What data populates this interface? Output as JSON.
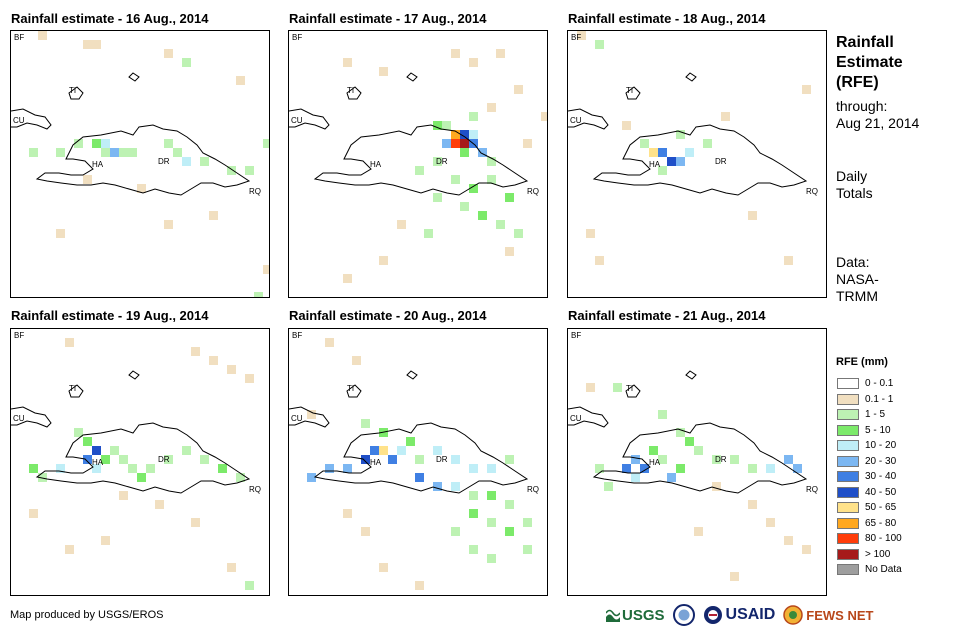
{
  "maps": [
    {
      "title": "Rainfall estimate - 16 Aug., 2014",
      "day": "16"
    },
    {
      "title": "Rainfall estimate - 17 Aug., 2014",
      "day": "17"
    },
    {
      "title": "Rainfall estimate - 18 Aug., 2014",
      "day": "18"
    },
    {
      "title": "Rainfall estimate - 19 Aug., 2014",
      "day": "19"
    },
    {
      "title": "Rainfall estimate - 20 Aug., 2014",
      "day": "20"
    },
    {
      "title": "Rainfall estimate - 21 Aug., 2014",
      "day": "21"
    }
  ],
  "map_labels": {
    "bf": "BF",
    "cu": "CU",
    "ti": "TI",
    "ha": "HA",
    "dr": "DR",
    "rq": "RQ"
  },
  "side": {
    "title_line1": "Rainfall",
    "title_line2": "Estimate",
    "title_line3": "(RFE)",
    "through_label": "through:",
    "through_date": "Aug 21, 2014",
    "totals_line1": "Daily",
    "totals_line2": "Totals",
    "data_line1": "Data:",
    "data_line2": "NASA-",
    "data_line3": "TRMM"
  },
  "legend": {
    "title": "RFE (mm)",
    "items": [
      {
        "label": "0 - 0.1",
        "color": "#ffffff"
      },
      {
        "label": "0.1 - 1",
        "color": "#f1dfc0"
      },
      {
        "label": "1 - 5",
        "color": "#bdf2b3"
      },
      {
        "label": "5 - 10",
        "color": "#7cea6a"
      },
      {
        "label": "10 - 20",
        "color": "#bfeef7"
      },
      {
        "label": "20 - 30",
        "color": "#7cb7f2"
      },
      {
        "label": "30 - 40",
        "color": "#3f7fe3"
      },
      {
        "label": "40 - 50",
        "color": "#1f4fc8"
      },
      {
        "label": "50 - 65",
        "color": "#ffe28a"
      },
      {
        "label": "65 - 80",
        "color": "#ffa81f"
      },
      {
        "label": "80 - 100",
        "color": "#ff3d0a"
      },
      {
        "label": "> 100",
        "color": "#a61a1a"
      },
      {
        "label": "No Data",
        "color": "#9e9e9e"
      }
    ]
  },
  "footer": {
    "credit": "Map produced by USGS/EROS",
    "usgs": "USGS",
    "usaid": "USAID",
    "fews": "FEWS NET"
  }
}
